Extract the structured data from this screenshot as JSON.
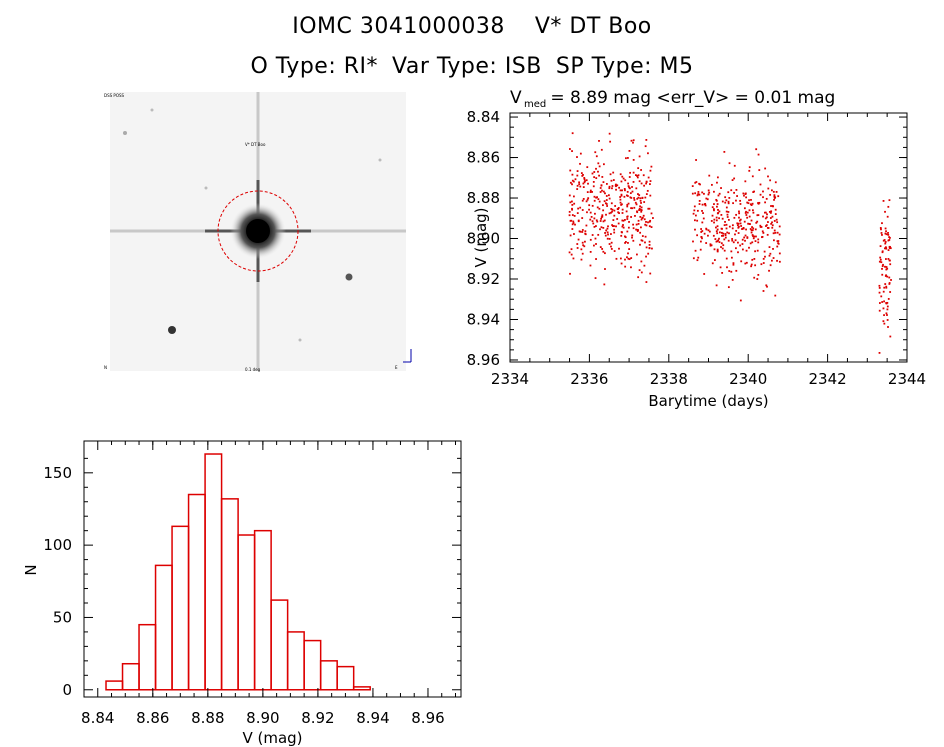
{
  "header": {
    "object_id": "IOMC 3041000038",
    "star_name": "V* DT Boo",
    "o_type": "O Type: RI*",
    "var_type": "Var Type: ISB",
    "sp_type": "SP Type: M5"
  },
  "finder": {
    "star_label": "V* DT Boo",
    "corner_top_left": "DSS POSS",
    "corner_bottom_left": "N",
    "corner_bottom_center": "0.1 deg",
    "corner_bottom_right": "E"
  },
  "colors": {
    "data_red": "#dd0000",
    "axis": "#000000",
    "finder_bg": "#f4f4f4"
  },
  "chart_data": [
    {
      "type": "scatter",
      "title_symbol": "V",
      "title_subscript": "med",
      "title_rest": " = 8.89 mag <err_V> = 0.01 mag",
      "xlabel": "Barytime (days)",
      "ylabel": "V (mag)",
      "xlim": [
        2334,
        2344
      ],
      "ylim": [
        8.961,
        8.838
      ],
      "xticks": [
        2334,
        2336,
        2338,
        2340,
        2342,
        2344
      ],
      "yticks": [
        8.84,
        8.86,
        8.88,
        8.9,
        8.92,
        8.94,
        8.96
      ],
      "clusters": [
        {
          "x_range": [
            2335.5,
            2337.6
          ],
          "y_mean": 8.885,
          "y_spread": 0.03,
          "count": 420
        },
        {
          "x_range": [
            2338.6,
            2340.8
          ],
          "y_mean": 8.893,
          "y_spread": 0.03,
          "count": 380
        },
        {
          "x_range": [
            2343.3,
            2343.6
          ],
          "y_mean": 8.915,
          "y_spread": 0.035,
          "count": 90
        }
      ]
    },
    {
      "type": "bar",
      "xlabel": "V (mag)",
      "ylabel": "N",
      "xlim": [
        8.835,
        8.972
      ],
      "ylim": [
        -5,
        172
      ],
      "xticks": [
        8.84,
        8.86,
        8.88,
        8.9,
        8.92,
        8.94,
        8.96
      ],
      "yticks": [
        0,
        50,
        100,
        150
      ],
      "bin_starts": [
        8.843,
        8.849,
        8.855,
        8.861,
        8.867,
        8.873,
        8.879,
        8.885,
        8.891,
        8.897,
        8.903,
        8.909,
        8.915,
        8.921,
        8.927,
        8.933,
        8.939,
        8.945,
        8.951,
        8.957
      ],
      "bin_width": 0.006,
      "counts": [
        6,
        18,
        45,
        86,
        113,
        135,
        163,
        132,
        107,
        110,
        62,
        40,
        34,
        20,
        16,
        2,
        0,
        0,
        0,
        0
      ]
    }
  ]
}
